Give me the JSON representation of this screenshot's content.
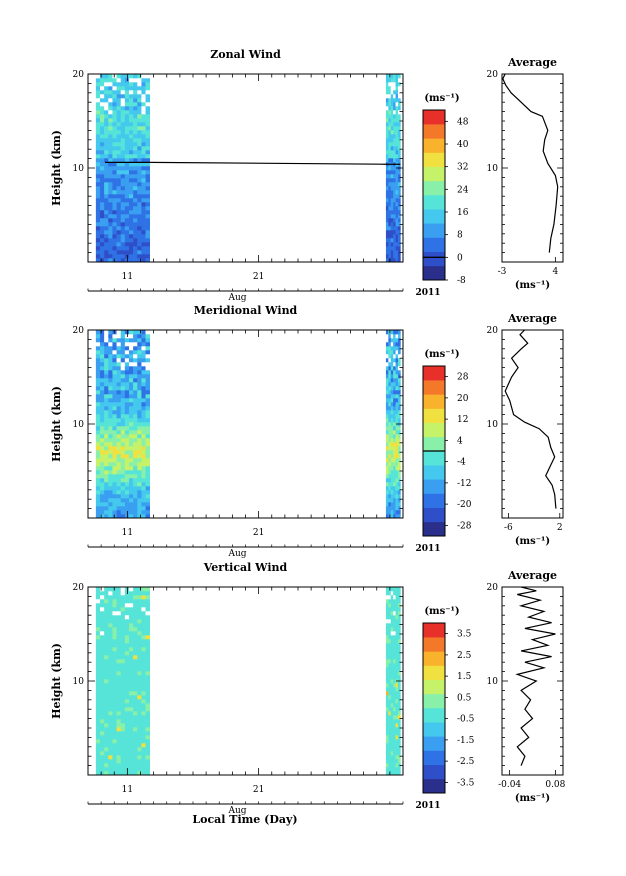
{
  "figure": {
    "x_axis_label": "Local Time (Day)",
    "month_label": "Aug",
    "year_label": "2011",
    "y_axis_label": "Height (km)",
    "unit": "(ms⁻¹)"
  },
  "chart_data": [
    {
      "type": "heatmap",
      "title": "Zonal Wind",
      "ylabel": "Height (km)",
      "ylim": [
        0,
        20
      ],
      "y_ticks": [
        10,
        20
      ],
      "x_tick_labels": [
        "11",
        "21"
      ],
      "x_ticks_day": [
        11,
        21
      ],
      "xlim_day": [
        8,
        32
      ],
      "data_intervals_day": [
        [
          8.6,
          12.7
        ],
        [
          30.7,
          31.8
        ]
      ],
      "colorbar_unit": "(ms⁻¹)",
      "colorbar_range": [
        -8,
        52
      ],
      "colorbar_ticks": [
        "-8",
        "0",
        "8",
        "16",
        "24",
        "32",
        "40",
        "48"
      ],
      "colorbar_zero_line": 0,
      "palette": [
        "#2b2f8c",
        "#2f4fc8",
        "#2f72e6",
        "#3a9ff0",
        "#44c8ee",
        "#56e4d8",
        "#88f0a8",
        "#c6f26a",
        "#f0e040",
        "#f8b22c",
        "#f4782a",
        "#e8302a"
      ],
      "average_profile": {
        "title": "Average",
        "xlabel": "(ms⁻¹)",
        "x_ticks": [
          "-3",
          "4"
        ],
        "xlim": [
          -3,
          5
        ],
        "ylim": [
          0,
          20
        ],
        "y_ticks": [
          10,
          20
        ],
        "points": [
          [
            3.2,
            1.0
          ],
          [
            3.4,
            2.5
          ],
          [
            3.8,
            4.0
          ],
          [
            4.1,
            6.0
          ],
          [
            4.3,
            8.0
          ],
          [
            4.0,
            9.2
          ],
          [
            3.0,
            10.5
          ],
          [
            2.4,
            11.8
          ],
          [
            2.6,
            13.0
          ],
          [
            3.0,
            14.0
          ],
          [
            2.3,
            15.5
          ],
          [
            0.8,
            16.0
          ],
          [
            -0.5,
            17.0
          ],
          [
            -1.8,
            18.0
          ],
          [
            -2.5,
            18.8
          ],
          [
            -2.9,
            19.5
          ],
          [
            -2.6,
            20.0
          ]
        ]
      }
    },
    {
      "type": "heatmap",
      "title": "Meridional Wind",
      "ylabel": "Height (km)",
      "ylim": [
        0,
        20
      ],
      "y_ticks": [
        10,
        20
      ],
      "x_tick_labels": [
        "11",
        "21"
      ],
      "x_ticks_day": [
        11,
        21
      ],
      "xlim_day": [
        8,
        32
      ],
      "data_intervals_day": [
        [
          8.6,
          12.7
        ],
        [
          30.7,
          31.8
        ]
      ],
      "colorbar_unit": "(ms⁻¹)",
      "colorbar_range": [
        -32,
        32
      ],
      "colorbar_ticks": [
        "-28",
        "-20",
        "-12",
        "-4",
        "4",
        "12",
        "20",
        "28"
      ],
      "colorbar_zero_line": 0,
      "palette": [
        "#2b2f8c",
        "#2f4fc8",
        "#2f72e6",
        "#3a9ff0",
        "#44c8ee",
        "#56e4d8",
        "#88f0a8",
        "#c6f26a",
        "#f0e040",
        "#f8b22c",
        "#f4782a",
        "#e8302a"
      ],
      "average_profile": {
        "title": "Average",
        "xlabel": "(ms⁻¹)",
        "x_ticks": [
          "-6",
          "2"
        ],
        "xlim": [
          -7,
          2.5
        ],
        "ylim": [
          0,
          20
        ],
        "y_ticks": [
          10,
          20
        ],
        "points": [
          [
            1.4,
            1.0
          ],
          [
            1.2,
            2.5
          ],
          [
            0.8,
            3.5
          ],
          [
            -0.2,
            4.5
          ],
          [
            0.5,
            5.5
          ],
          [
            1.2,
            6.5
          ],
          [
            0.6,
            7.5
          ],
          [
            0.2,
            8.6
          ],
          [
            -1.2,
            9.5
          ],
          [
            -3.5,
            10.2
          ],
          [
            -5.2,
            11.0
          ],
          [
            -5.8,
            12.5
          ],
          [
            -6.5,
            13.5
          ],
          [
            -5.5,
            15.0
          ],
          [
            -4.5,
            16.0
          ],
          [
            -5.5,
            17.0
          ],
          [
            -4.0,
            18.0
          ],
          [
            -3.0,
            18.6
          ],
          [
            -4.2,
            19.5
          ],
          [
            -3.5,
            20.0
          ]
        ]
      }
    },
    {
      "type": "heatmap",
      "title": "Vertical Wind",
      "ylabel": "Height (km)",
      "ylim": [
        0,
        20
      ],
      "y_ticks": [
        10,
        20
      ],
      "x_tick_labels": [
        "11",
        "21"
      ],
      "x_ticks_day": [
        11,
        21
      ],
      "xlim_day": [
        8,
        32
      ],
      "data_intervals_day": [
        [
          8.6,
          12.7
        ],
        [
          30.7,
          31.8
        ]
      ],
      "colorbar_unit": "(ms⁻¹)",
      "colorbar_range": [
        -4,
        4
      ],
      "colorbar_ticks": [
        "-3.5",
        "-2.5",
        "-1.5",
        "-0.5",
        "0.5",
        "1.5",
        "2.5",
        "3.5"
      ],
      "palette": [
        "#2b2f8c",
        "#2f4fc8",
        "#2f72e6",
        "#3a9ff0",
        "#44c8ee",
        "#56e4d8",
        "#88f0a8",
        "#c6f26a",
        "#f0e040",
        "#f8b22c",
        "#f4782a",
        "#e8302a"
      ],
      "average_profile": {
        "title": "Average",
        "xlabel": "(ms⁻¹)",
        "x_ticks": [
          "-0.04",
          "0.08"
        ],
        "xlim": [
          -0.06,
          0.1
        ],
        "ylim": [
          0,
          20
        ],
        "y_ticks": [
          10,
          20
        ],
        "points": [
          [
            -0.01,
            1.0
          ],
          [
            0.0,
            2.0
          ],
          [
            -0.02,
            3.0
          ],
          [
            0.01,
            4.0
          ],
          [
            -0.01,
            5.0
          ],
          [
            0.02,
            6.0
          ],
          [
            0.0,
            7.0
          ],
          [
            0.015,
            8.0
          ],
          [
            -0.01,
            9.0
          ],
          [
            0.03,
            10.0
          ],
          [
            -0.02,
            10.7
          ],
          [
            0.05,
            11.4
          ],
          [
            0.0,
            12.0
          ],
          [
            0.07,
            12.6
          ],
          [
            -0.01,
            13.2
          ],
          [
            0.06,
            13.8
          ],
          [
            0.02,
            14.4
          ],
          [
            0.08,
            15.0
          ],
          [
            0.0,
            15.6
          ],
          [
            0.07,
            16.2
          ],
          [
            0.01,
            16.8
          ],
          [
            0.05,
            17.4
          ],
          [
            -0.01,
            18.0
          ],
          [
            0.04,
            18.6
          ],
          [
            -0.02,
            19.2
          ],
          [
            0.03,
            19.6
          ],
          [
            -0.01,
            20.0
          ]
        ]
      }
    }
  ]
}
